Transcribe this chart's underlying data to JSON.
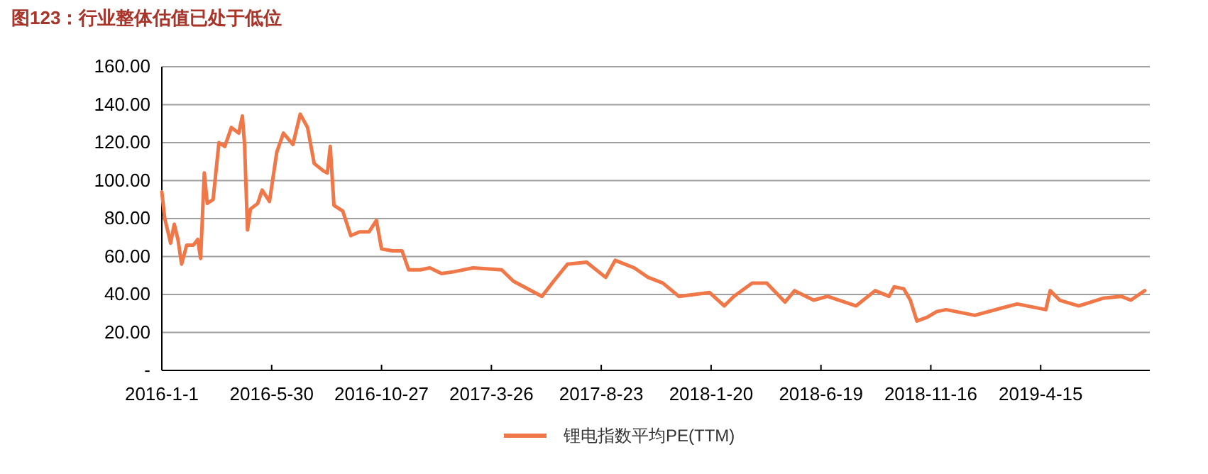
{
  "chart_data": {
    "type": "line",
    "title": "图123：行业整体估值已处于低位",
    "xlim": [
      "2016-01-01",
      "2019-09-11"
    ],
    "xticks": [
      {
        "value": "2016-01-01",
        "label": "2016-1-1"
      },
      {
        "value": "2016-05-30",
        "label": "2016-5-30"
      },
      {
        "value": "2016-10-27",
        "label": "2016-10-27"
      },
      {
        "value": "2017-03-26",
        "label": "2017-3-26"
      },
      {
        "value": "2017-08-23",
        "label": "2017-8-23"
      },
      {
        "value": "2018-01-20",
        "label": "2018-1-20"
      },
      {
        "value": "2018-06-19",
        "label": "2018-6-19"
      },
      {
        "value": "2018-11-16",
        "label": "2018-11-16"
      },
      {
        "value": "2019-04-15",
        "label": "2019-4-15"
      }
    ],
    "ylim": [
      0,
      160
    ],
    "yticks": [
      {
        "value": 0,
        "label": "-"
      },
      {
        "value": 20,
        "label": "20.00"
      },
      {
        "value": 40,
        "label": "40.00"
      },
      {
        "value": 60,
        "label": "60.00"
      },
      {
        "value": 80,
        "label": "80.00"
      },
      {
        "value": 100,
        "label": "100.00"
      },
      {
        "value": 120,
        "label": "120.00"
      },
      {
        "value": 140,
        "label": "140.00"
      },
      {
        "value": 160,
        "label": "160.00"
      }
    ],
    "grid": "y",
    "legend": "bottom",
    "marker": "none",
    "line_style": "solid",
    "x": [
      "2016-01-01",
      "2016-01-05",
      "2016-01-10",
      "2016-01-13",
      "2016-01-18",
      "2016-01-23",
      "2016-01-28",
      "2016-02-04",
      "2016-02-13",
      "2016-02-19",
      "2016-02-23",
      "2016-02-28",
      "2016-03-03",
      "2016-03-11",
      "2016-03-19",
      "2016-03-27",
      "2016-04-05",
      "2016-04-15",
      "2016-04-20",
      "2016-04-23",
      "2016-04-27",
      "2016-05-01",
      "2016-05-11",
      "2016-05-17",
      "2016-05-27",
      "2016-06-06",
      "2016-06-15",
      "2016-06-28",
      "2016-07-08",
      "2016-07-18",
      "2016-07-27",
      "2016-08-09",
      "2016-08-14",
      "2016-08-18",
      "2016-08-23",
      "2016-09-04",
      "2016-09-15",
      "2016-09-27",
      "2016-10-10",
      "2016-10-20",
      "2016-10-27",
      "2016-11-11",
      "2016-11-24",
      "2016-12-03",
      "2016-12-19",
      "2017-01-01",
      "2017-01-17",
      "2017-02-03",
      "2017-03-01",
      "2017-04-09",
      "2017-04-25",
      "2017-06-03",
      "2017-06-19",
      "2017-07-08",
      "2017-08-03",
      "2017-08-29",
      "2017-09-11",
      "2017-10-07",
      "2017-10-26",
      "2017-11-15",
      "2017-12-07",
      "2018-01-18",
      "2018-02-07",
      "2018-02-20",
      "2018-03-17",
      "2018-04-06",
      "2018-05-01",
      "2018-05-14",
      "2018-06-09",
      "2018-06-28",
      "2018-08-06",
      "2018-09-01",
      "2018-09-20",
      "2018-09-27",
      "2018-10-10",
      "2018-10-19",
      "2018-10-28",
      "2018-11-11",
      "2018-11-24",
      "2018-12-07",
      "2019-01-15",
      "2019-02-22",
      "2019-03-14",
      "2019-04-22",
      "2019-04-28",
      "2019-05-11",
      "2019-06-06",
      "2019-07-09",
      "2019-08-03",
      "2019-08-16",
      "2019-09-04"
    ],
    "series": [
      {
        "name": "锂电指数平均PE(TTM)",
        "color": "#f07848",
        "values": [
          94,
          80,
          72,
          67,
          77,
          69,
          56,
          66,
          66,
          69,
          59,
          104,
          88,
          90,
          120,
          118,
          128,
          125,
          134,
          119,
          74,
          85,
          88,
          95,
          89,
          115,
          125,
          119,
          135,
          128,
          109,
          105,
          104,
          118,
          87,
          84,
          71,
          73,
          73,
          79,
          64,
          63,
          63,
          53,
          53,
          54,
          51,
          52,
          54,
          53,
          47,
          39,
          47,
          56,
          57,
          49,
          58,
          54,
          49,
          46,
          39,
          41,
          34,
          39,
          46,
          46,
          36,
          42,
          37,
          39,
          34,
          42,
          39,
          44,
          43,
          37,
          26,
          28,
          31,
          32,
          29,
          33,
          35,
          32,
          42,
          37,
          34,
          38,
          39,
          37,
          42
        ]
      }
    ]
  }
}
